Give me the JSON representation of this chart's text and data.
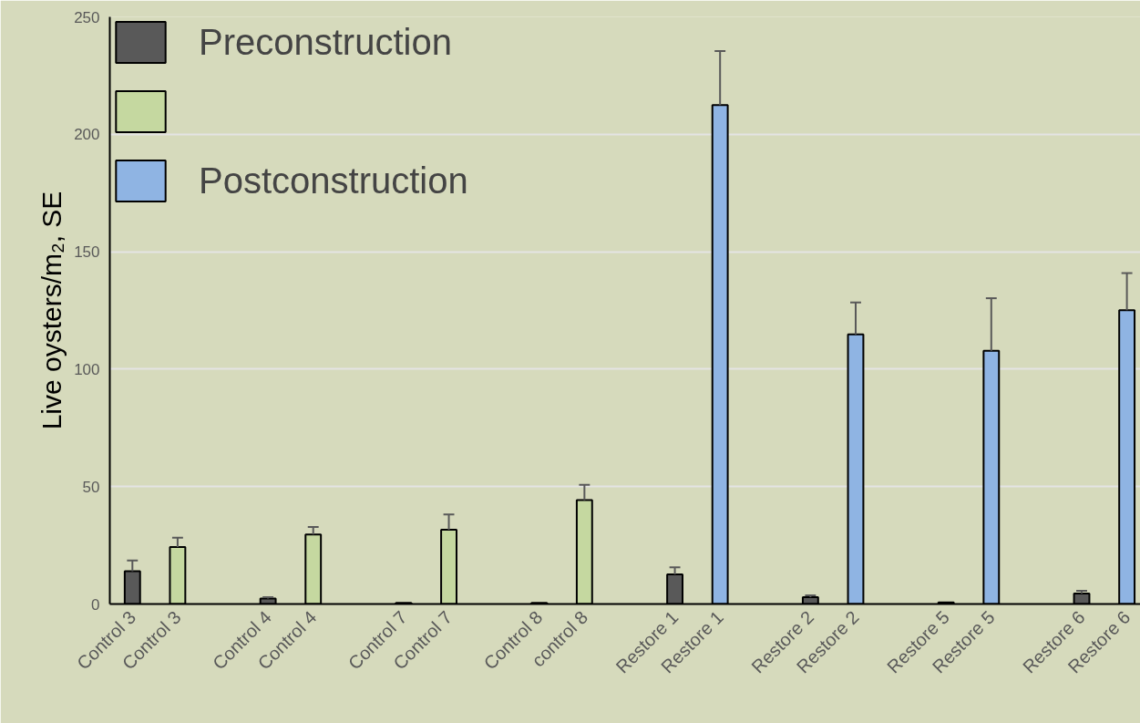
{
  "chart_data": {
    "type": "bar",
    "ylabel": "Live oysters/m₂, SE",
    "categories": [
      "Control 3",
      "Control 3",
      null,
      "Control 4",
      "Control 4",
      null,
      "Control 7",
      "Control 7",
      null,
      "Control 8",
      "control 8",
      null,
      "Restore 1",
      "Restore 1",
      null,
      "Restore 2",
      "Restore 2",
      null,
      "Restore 5",
      "Restore 5",
      null,
      "Restore 6",
      "Restore 6"
    ],
    "series": [
      {
        "name": "Preconstruction",
        "color": "#595959",
        "values": [
          14,
          null,
          null,
          2.3,
          null,
          null,
          0.5,
          null,
          null,
          0.5,
          null,
          null,
          12.6,
          null,
          null,
          2.9,
          null,
          null,
          0.7,
          null,
          null,
          4.5,
          null
        ],
        "errors": [
          4.5,
          null,
          null,
          0.6,
          null,
          null,
          null,
          null,
          null,
          null,
          null,
          null,
          3,
          null,
          null,
          0.8,
          null,
          null,
          null,
          null,
          null,
          1.1,
          null
        ]
      },
      {
        "name": "Postconstruction",
        "colors": [
          null,
          "#c5d8a0",
          null,
          null,
          "#c5d8a0",
          null,
          null,
          "#c5d8a0",
          null,
          null,
          "#c5d8a0",
          null,
          null,
          "#8fb4e3",
          null,
          null,
          "#8fb4e3",
          null,
          null,
          "#8fb4e3",
          null,
          null,
          "#8fb4e3"
        ],
        "values": [
          null,
          24.3,
          null,
          null,
          29.6,
          null,
          null,
          31.6,
          null,
          null,
          44.3,
          null,
          null,
          212.4,
          null,
          null,
          114.8,
          null,
          null,
          107.8,
          null,
          null,
          125.1
        ],
        "errors": [
          null,
          3.9,
          null,
          null,
          3.2,
          null,
          null,
          6.5,
          null,
          null,
          6.5,
          null,
          null,
          23,
          null,
          null,
          13.6,
          null,
          null,
          22.4,
          null,
          null,
          15.8
        ]
      }
    ],
    "ylim": [
      0,
      250
    ],
    "yticks": [
      0,
      50,
      100,
      150,
      200,
      250
    ],
    "grid": "y",
    "legend": "top left"
  }
}
